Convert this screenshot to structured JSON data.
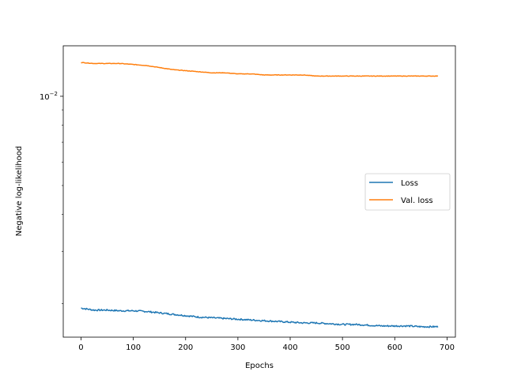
{
  "chart_data": {
    "type": "line",
    "title": "",
    "xlabel": "Epochs",
    "ylabel": "Negative log-likelihood",
    "xlim": [
      -34,
      716
    ],
    "ylim": [
      0.00154,
      0.0148
    ],
    "yscale": "log",
    "x_ticks": [
      0,
      100,
      200,
      300,
      400,
      500,
      600,
      700
    ],
    "y_tick_label": {
      "value": 0.01,
      "base": "10",
      "exponent": "−2"
    },
    "y_minor_ticks": [
      0.002,
      0.003,
      0.004,
      0.005,
      0.006,
      0.007,
      0.008,
      0.009
    ],
    "grid": false,
    "legend": "center-right",
    "series": [
      {
        "name": "Loss",
        "color": "#1f77b4",
        "x": [
          0,
          25,
          50,
          75,
          100,
          125,
          150,
          175,
          200,
          225,
          250,
          275,
          300,
          325,
          350,
          375,
          400,
          425,
          450,
          475,
          500,
          525,
          550,
          575,
          600,
          625,
          650,
          683
        ],
        "y": [
          0.00193,
          0.0019,
          0.0019,
          0.00189,
          0.00189,
          0.00188,
          0.00186,
          0.00184,
          0.00182,
          0.0018,
          0.00179,
          0.00178,
          0.00177,
          0.00176,
          0.00175,
          0.00174,
          0.00173,
          0.00172,
          0.00172,
          0.00171,
          0.0017,
          0.0017,
          0.00169,
          0.00168,
          0.00168,
          0.00168,
          0.00167,
          0.00167
        ]
      },
      {
        "name": "Val. loss",
        "color": "#ff7f0e",
        "x": [
          0,
          25,
          50,
          75,
          100,
          125,
          150,
          175,
          200,
          225,
          250,
          275,
          300,
          325,
          350,
          375,
          400,
          425,
          450,
          475,
          500,
          525,
          550,
          575,
          600,
          625,
          650,
          683
        ],
        "y": [
          0.013,
          0.0129,
          0.0129,
          0.0129,
          0.0128,
          0.0127,
          0.0125,
          0.0123,
          0.0122,
          0.0121,
          0.012,
          0.012,
          0.0119,
          0.0119,
          0.0118,
          0.0118,
          0.0118,
          0.0118,
          0.0117,
          0.0117,
          0.0117,
          0.0117,
          0.0117,
          0.0117,
          0.0117,
          0.0117,
          0.0117,
          0.0117
        ]
      }
    ]
  }
}
